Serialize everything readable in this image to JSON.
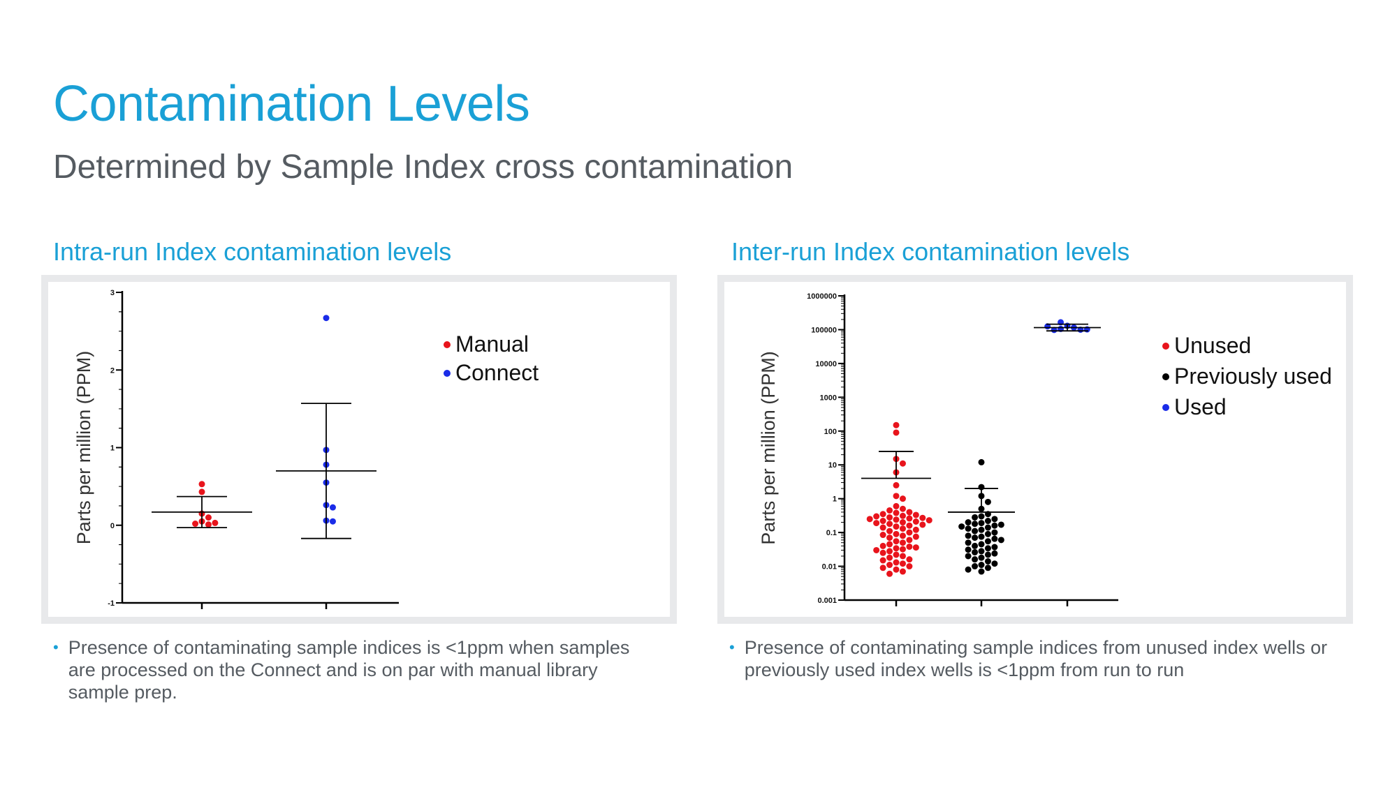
{
  "page": {
    "title": "Contamination Levels",
    "subtitle": "Determined by Sample Index cross contamination"
  },
  "left_panel": {
    "heading": "Intra-run Index contamination levels",
    "bullet": "Presence of contaminating sample indices is <1ppm when samples are processed on the Connect and is on par with manual library sample prep."
  },
  "right_panel": {
    "heading": "Inter-run Index contamination levels",
    "bullet": "Presence of contaminating sample indices from unused index wells or previously used index wells is <1ppm from run to run"
  },
  "colors": {
    "accent": "#1aa0d6",
    "text_gray": "#555b61",
    "red": "#e8141c",
    "blue": "#1a2ce8",
    "black": "#000000"
  },
  "chart_data": [
    {
      "type": "scatter",
      "ylabel": "Parts per million (PPM)",
      "ylim": [
        -1,
        3
      ],
      "yticks": [
        "-1",
        "0",
        "1",
        "2",
        "3"
      ],
      "legend_position": "top-right",
      "series": [
        {
          "name": "Manual",
          "color": "#e8141c",
          "values": [
            0.53,
            0.43,
            0.15,
            0.1,
            0.05,
            0.02,
            0.01,
            0.03
          ],
          "mean": 0.17,
          "sd_upper": 0.37,
          "sd_lower": -0.03
        },
        {
          "name": "Connect",
          "color": "#1a2ce8",
          "values": [
            2.67,
            0.97,
            0.78,
            0.55,
            0.26,
            0.23,
            0.06,
            0.05
          ],
          "mean": 0.7,
          "sd_upper": 1.57,
          "sd_lower": -0.17
        }
      ]
    },
    {
      "type": "scatter",
      "ylabel": "Parts per million (PPM)",
      "yscale": "log",
      "ylim": [
        0.001,
        1000000
      ],
      "yticks": [
        "0.001",
        "0.01",
        "0.1",
        "1",
        "10",
        "100",
        "1000",
        "10000",
        "100000",
        "1000000"
      ],
      "legend_position": "top-right",
      "series": [
        {
          "name": "Unused",
          "color": "#e8141c",
          "values": [
            150,
            90,
            15,
            11,
            6,
            2.5,
            1.2,
            1.0,
            0.6,
            0.5,
            0.45,
            0.4,
            0.38,
            0.35,
            0.33,
            0.31,
            0.3,
            0.28,
            0.27,
            0.26,
            0.25,
            0.24,
            0.23,
            0.22,
            0.21,
            0.2,
            0.19,
            0.18,
            0.17,
            0.16,
            0.15,
            0.14,
            0.13,
            0.12,
            0.11,
            0.1,
            0.09,
            0.085,
            0.08,
            0.075,
            0.07,
            0.06,
            0.055,
            0.05,
            0.045,
            0.04,
            0.038,
            0.036,
            0.034,
            0.032,
            0.03,
            0.028,
            0.025,
            0.022,
            0.02,
            0.018,
            0.016,
            0.015,
            0.013,
            0.012,
            0.011,
            0.01,
            0.009,
            0.008,
            0.007,
            0.006
          ],
          "mean": 4,
          "sd_upper": 25,
          "sd_lower": null
        },
        {
          "name": "Previously used",
          "color": "#000000",
          "values": [
            12,
            2.2,
            1.2,
            0.8,
            0.5,
            0.35,
            0.3,
            0.28,
            0.25,
            0.22,
            0.2,
            0.19,
            0.18,
            0.17,
            0.16,
            0.15,
            0.14,
            0.13,
            0.12,
            0.11,
            0.1,
            0.09,
            0.08,
            0.075,
            0.07,
            0.065,
            0.06,
            0.055,
            0.05,
            0.045,
            0.04,
            0.037,
            0.034,
            0.031,
            0.028,
            0.026,
            0.024,
            0.022,
            0.02,
            0.018,
            0.016,
            0.014,
            0.012,
            0.011,
            0.01,
            0.009,
            0.008,
            0.007
          ],
          "mean": 0.4,
          "sd_upper": 2.0,
          "sd_lower": null
        },
        {
          "name": "Used",
          "color": "#1a2ce8",
          "values": [
            130000,
            115000,
            105000,
            100000,
            98000,
            102000,
            125000,
            165000
          ],
          "mean": 115000,
          "sd_upper": 145000,
          "sd_lower": 92000
        }
      ]
    }
  ]
}
